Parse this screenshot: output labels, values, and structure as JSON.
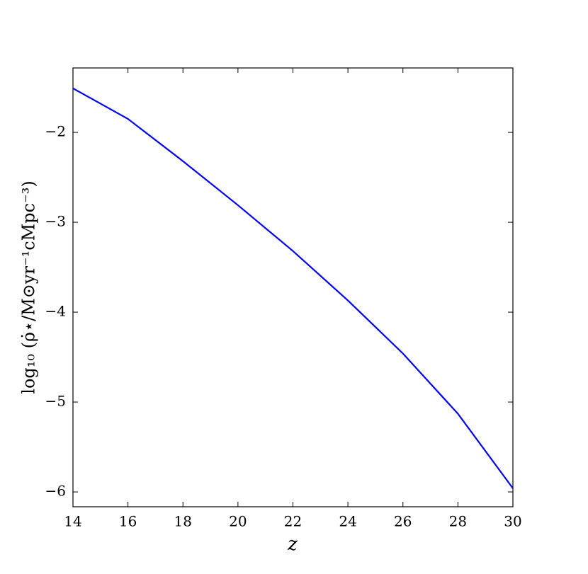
{
  "chart_data": {
    "type": "line",
    "x_label": "z",
    "y_label": "log₁₀ (ρ̇⋆/M⊙yr⁻¹cMpc⁻³)",
    "x": [
      14,
      16,
      18,
      20,
      22,
      24,
      26,
      28,
      30
    ],
    "series": [
      {
        "color": "#0000ff",
        "values": [
          -1.51,
          -1.85,
          -2.32,
          -2.81,
          -3.32,
          -3.87,
          -4.46,
          -5.13,
          -5.96
        ]
      }
    ],
    "xlim": [
      14,
      30
    ],
    "xticks": [
      14,
      16,
      18,
      20,
      22,
      24,
      26,
      28,
      30
    ],
    "ylim": [
      -6.165,
      -1.283
    ],
    "yticks": [
      {
        "value": -6,
        "label": "−6"
      },
      {
        "value": -5,
        "label": "−5"
      },
      {
        "value": -4,
        "label": "−4"
      },
      {
        "value": -3,
        "label": "−3"
      },
      {
        "value": -2,
        "label": "−2"
      }
    ]
  }
}
